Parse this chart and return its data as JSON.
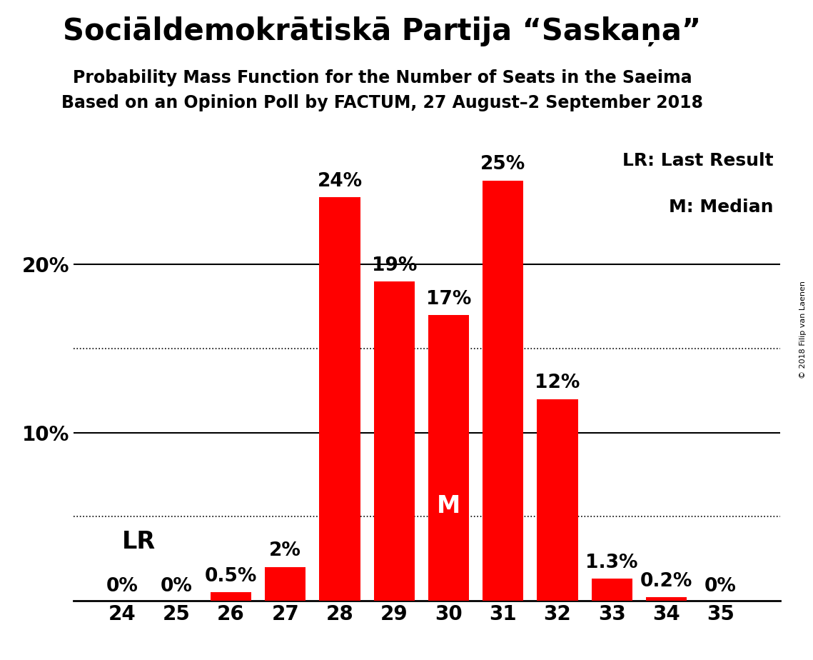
{
  "title": "Sociāldemokrātiskā Partija “Saskaņa”",
  "subtitle1": "Probability Mass Function for the Number of Seats in the Saeima",
  "subtitle2": "Based on an Opinion Poll by FACTUM, 27 August–2 September 2018",
  "copyright": "© 2018 Filip van Laenen",
  "seats": [
    24,
    25,
    26,
    27,
    28,
    29,
    30,
    31,
    32,
    33,
    34,
    35
  ],
  "probabilities": [
    0.0,
    0.0,
    0.5,
    2.0,
    24.0,
    19.0,
    17.0,
    25.0,
    12.0,
    1.3,
    0.2,
    0.0
  ],
  "bar_color": "#ff0000",
  "bar_labels": [
    "0%",
    "0%",
    "0.5%",
    "2%",
    "24%",
    "19%",
    "17%",
    "25%",
    "12%",
    "1.3%",
    "0.2%",
    "0%"
  ],
  "median_seat": 30,
  "median_label": "M",
  "lr_label": "LR",
  "legend_lr": "LR: Last Result",
  "legend_m": "M: Median",
  "ylim_max": 27.5,
  "solid_lines": [
    10.0,
    20.0
  ],
  "dotted_lines": [
    5.0,
    15.0
  ],
  "background_color": "#ffffff",
  "title_fontsize": 30,
  "subtitle_fontsize": 17,
  "axis_fontsize": 20,
  "bar_label_fontsize": 19,
  "median_label_fontsize": 24,
  "lr_label_fontsize": 24,
  "legend_fontsize": 18
}
